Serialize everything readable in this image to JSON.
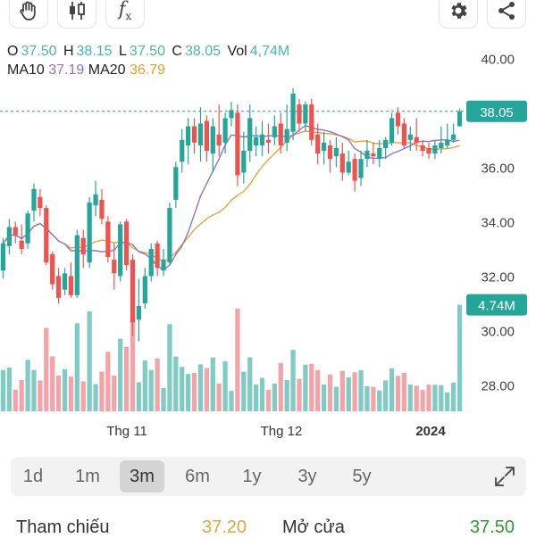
{
  "toolbar": {
    "buttons": [
      {
        "icon": "hand-icon"
      },
      {
        "icon": "candlestick-icon"
      },
      {
        "icon": "function-icon",
        "label": "f"
      },
      {
        "icon": "gear-icon"
      },
      {
        "icon": "share-icon"
      }
    ]
  },
  "ohlc": {
    "o_label": "O",
    "o_value": "37.50",
    "h_label": "H",
    "h_value": "38.15",
    "l_label": "L",
    "l_value": "37.50",
    "c_label": "C",
    "c_value": "38.05",
    "vol_label": "Vol",
    "vol_value": "4,74M"
  },
  "ma": {
    "ma10_label": "MA10",
    "ma10_value": "37.19",
    "ma20_label": "MA20",
    "ma20_value": "36.79"
  },
  "colors": {
    "up": "#26a69a",
    "down": "#ef5350",
    "vol_up": "#80cbc4",
    "vol_down": "#f4a3a8",
    "ma10": "#8e74c9",
    "ma20": "#e8a33c",
    "price_tag": "#26a69a"
  },
  "chart_data": {
    "type": "candlestick",
    "y_ticks": [
      "40.00",
      "38.00",
      "36.00",
      "34.00",
      "32.00",
      "30.00",
      "28.00"
    ],
    "ylim": [
      27.0,
      40.5
    ],
    "x_labels": [
      "Thg 11",
      "Thg 12",
      "2024"
    ],
    "current_price": "38.05",
    "current_volume": "4.74M",
    "candles": [
      {
        "o": 32.2,
        "c": 33.2,
        "h": 33.4,
        "l": 31.9
      },
      {
        "o": 33.1,
        "c": 33.8,
        "h": 34.1,
        "l": 32.8
      },
      {
        "o": 33.8,
        "c": 33.5,
        "h": 34.0,
        "l": 33.2
      },
      {
        "o": 33.3,
        "c": 33.0,
        "h": 33.9,
        "l": 32.8
      },
      {
        "o": 33.2,
        "c": 34.3,
        "h": 34.4,
        "l": 33.0
      },
      {
        "o": 34.4,
        "c": 35.2,
        "h": 35.4,
        "l": 34.0
      },
      {
        "o": 34.9,
        "c": 34.5,
        "h": 35.2,
        "l": 34.2
      },
      {
        "o": 34.5,
        "c": 32.5,
        "h": 34.6,
        "l": 32.4
      },
      {
        "o": 32.8,
        "c": 31.7,
        "h": 32.9,
        "l": 31.5
      },
      {
        "o": 32.0,
        "c": 31.2,
        "h": 32.3,
        "l": 31.0
      },
      {
        "o": 31.5,
        "c": 32.1,
        "h": 32.3,
        "l": 31.3
      },
      {
        "o": 32.0,
        "c": 31.3,
        "h": 32.5,
        "l": 31.2
      },
      {
        "o": 31.3,
        "c": 33.5,
        "h": 33.7,
        "l": 31.2
      },
      {
        "o": 33.4,
        "c": 32.8,
        "h": 33.7,
        "l": 32.3
      },
      {
        "o": 32.5,
        "c": 34.7,
        "h": 34.9,
        "l": 32.3
      },
      {
        "o": 34.6,
        "c": 35.0,
        "h": 35.5,
        "l": 34.2
      },
      {
        "o": 34.8,
        "c": 34.1,
        "h": 35.2,
        "l": 33.9
      },
      {
        "o": 34.0,
        "c": 32.7,
        "h": 34.2,
        "l": 32.5
      },
      {
        "o": 32.6,
        "c": 32.1,
        "h": 33.2,
        "l": 31.5
      },
      {
        "o": 32.0,
        "c": 33.9,
        "h": 34.0,
        "l": 31.8
      },
      {
        "o": 34.0,
        "c": 32.4,
        "h": 34.1,
        "l": 32.2
      },
      {
        "o": 32.6,
        "c": 30.3,
        "h": 32.8,
        "l": 29.8
      },
      {
        "o": 30.4,
        "c": 30.9,
        "h": 31.9,
        "l": 29.6
      },
      {
        "o": 31.0,
        "c": 32.0,
        "h": 32.3,
        "l": 30.8
      },
      {
        "o": 32.0,
        "c": 33.0,
        "h": 33.2,
        "l": 31.8
      },
      {
        "o": 33.2,
        "c": 32.3,
        "h": 33.3,
        "l": 32.0
      },
      {
        "o": 32.2,
        "c": 32.6,
        "h": 33.0,
        "l": 32.0
      },
      {
        "o": 32.5,
        "c": 34.5,
        "h": 34.7,
        "l": 32.4
      },
      {
        "o": 34.8,
        "c": 36.0,
        "h": 36.2,
        "l": 34.5
      },
      {
        "o": 36.2,
        "c": 37.0,
        "h": 37.4,
        "l": 35.8
      },
      {
        "o": 36.8,
        "c": 37.5,
        "h": 37.8,
        "l": 36.1
      },
      {
        "o": 37.5,
        "c": 36.9,
        "h": 37.8,
        "l": 36.5
      },
      {
        "o": 36.8,
        "c": 37.6,
        "h": 38.2,
        "l": 36.2
      },
      {
        "o": 37.7,
        "c": 36.6,
        "h": 37.9,
        "l": 36.2
      },
      {
        "o": 36.5,
        "c": 37.5,
        "h": 37.8,
        "l": 35.8
      },
      {
        "o": 37.2,
        "c": 36.8,
        "h": 38.3,
        "l": 36.4
      },
      {
        "o": 36.9,
        "c": 37.8,
        "h": 38.0,
        "l": 36.5
      },
      {
        "o": 37.8,
        "c": 38.1,
        "h": 38.4,
        "l": 37.5
      },
      {
        "o": 38.0,
        "c": 35.7,
        "h": 38.3,
        "l": 35.3
      },
      {
        "o": 35.8,
        "c": 36.6,
        "h": 37.3,
        "l": 35.4
      },
      {
        "o": 36.6,
        "c": 37.8,
        "h": 38.3,
        "l": 36.2
      },
      {
        "o": 36.8,
        "c": 37.1,
        "h": 37.5,
        "l": 36.4
      },
      {
        "o": 36.8,
        "c": 37.2,
        "h": 37.7,
        "l": 36.4
      },
      {
        "o": 37.0,
        "c": 36.9,
        "h": 37.6,
        "l": 36.5
      },
      {
        "o": 37.1,
        "c": 37.5,
        "h": 37.9,
        "l": 36.8
      },
      {
        "o": 37.6,
        "c": 36.8,
        "h": 38.0,
        "l": 36.5
      },
      {
        "o": 36.9,
        "c": 37.4,
        "h": 38.3,
        "l": 36.6
      },
      {
        "o": 37.3,
        "c": 38.7,
        "h": 38.9,
        "l": 37.0
      },
      {
        "o": 38.3,
        "c": 37.6,
        "h": 38.5,
        "l": 37.3
      },
      {
        "o": 37.6,
        "c": 38.3,
        "h": 38.4,
        "l": 37.3
      },
      {
        "o": 38.3,
        "c": 37.0,
        "h": 38.5,
        "l": 36.8
      },
      {
        "o": 37.2,
        "c": 36.5,
        "h": 37.6,
        "l": 36.1
      },
      {
        "o": 36.6,
        "c": 36.9,
        "h": 37.3,
        "l": 36.1
      },
      {
        "o": 36.8,
        "c": 36.3,
        "h": 37.0,
        "l": 35.8
      },
      {
        "o": 36.4,
        "c": 36.7,
        "h": 37.1,
        "l": 36.0
      },
      {
        "o": 36.5,
        "c": 35.8,
        "h": 36.9,
        "l": 35.5
      },
      {
        "o": 35.8,
        "c": 36.2,
        "h": 36.6,
        "l": 35.7
      },
      {
        "o": 36.3,
        "c": 35.5,
        "h": 36.5,
        "l": 35.1
      },
      {
        "o": 35.6,
        "c": 36.3,
        "h": 36.6,
        "l": 35.3
      },
      {
        "o": 36.3,
        "c": 36.6,
        "h": 37.0,
        "l": 36.0
      },
      {
        "o": 36.5,
        "c": 36.4,
        "h": 36.9,
        "l": 36.1
      },
      {
        "o": 36.3,
        "c": 36.7,
        "h": 37.0,
        "l": 36.0
      },
      {
        "o": 36.7,
        "c": 37.0,
        "h": 37.1,
        "l": 36.3
      },
      {
        "o": 36.9,
        "c": 37.8,
        "h": 38.0,
        "l": 36.8
      },
      {
        "o": 38.0,
        "c": 37.5,
        "h": 38.2,
        "l": 37.2
      },
      {
        "o": 37.6,
        "c": 36.8,
        "h": 37.8,
        "l": 36.7
      },
      {
        "o": 37.0,
        "c": 37.2,
        "h": 37.5,
        "l": 36.6
      },
      {
        "o": 37.1,
        "c": 36.9,
        "h": 37.8,
        "l": 36.6
      },
      {
        "o": 36.8,
        "c": 36.6,
        "h": 37.0,
        "l": 36.4
      },
      {
        "o": 36.7,
        "c": 36.5,
        "h": 36.9,
        "l": 36.3
      },
      {
        "o": 36.5,
        "c": 36.8,
        "h": 37.0,
        "l": 36.3
      },
      {
        "o": 36.7,
        "c": 36.9,
        "h": 37.5,
        "l": 36.5
      },
      {
        "o": 36.8,
        "c": 37.0,
        "h": 37.6,
        "l": 36.7
      },
      {
        "o": 37.0,
        "c": 37.2,
        "h": 37.6,
        "l": 36.9
      },
      {
        "o": 37.5,
        "c": 38.05,
        "h": 38.15,
        "l": 37.5
      }
    ],
    "volume_ylim": [
      0,
      5.2
    ]
  },
  "ranges": {
    "items": [
      "1d",
      "1m",
      "3m",
      "6m",
      "1y",
      "3y",
      "5y"
    ],
    "active": "3m"
  },
  "footer": {
    "ref_label": "Tham chiếu",
    "ref_value": "37.20",
    "open_label": "Mở cửa",
    "open_value": "37.50"
  }
}
